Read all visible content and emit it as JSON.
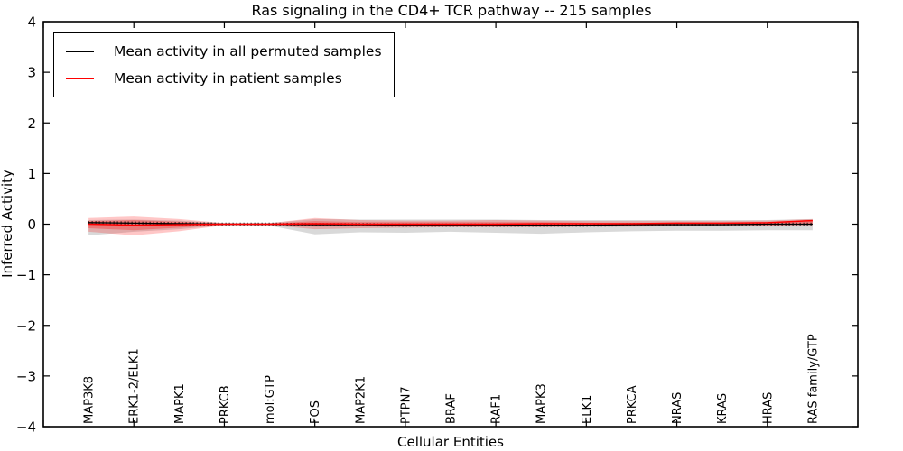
{
  "page": {
    "background": "#ffffff"
  },
  "chart_data": {
    "type": "line",
    "title": "Ras signaling in the CD4+ TCR pathway -- 215 samples",
    "xlabel": "Cellular Entities",
    "ylabel": "Inferred Activity",
    "ylim": [
      -4,
      4
    ],
    "yticks": [
      4,
      3,
      2,
      1,
      0,
      -1,
      -2,
      -3,
      -4
    ],
    "grid": false,
    "legend_position": "upper left",
    "categories": [
      "MAP3K8",
      "ERK1-2/ELK1",
      "MAPK1",
      "PRKCB",
      "mol:GTP",
      "FOS",
      "MAP2K1",
      "PTPN7",
      "BRAF",
      "RAF1",
      "MAPK3",
      "ELK1",
      "PRKCA",
      "NRAS",
      "KRAS",
      "HRAS",
      "RAS family/GTP"
    ],
    "series": [
      {
        "name": "Mean activity in all permuted samples",
        "color": "#000000",
        "style": "solid-with-vertical-tick-markers",
        "values": [
          0.03,
          0.02,
          0.01,
          0.0,
          0.0,
          -0.01,
          -0.01,
          -0.02,
          -0.02,
          -0.02,
          -0.02,
          -0.02,
          -0.01,
          -0.01,
          -0.01,
          0.0,
          0.0
        ]
      },
      {
        "name": "Mean activity in patient samples",
        "color": "#ff0000",
        "style": "solid",
        "values": [
          0.0,
          -0.02,
          -0.01,
          0.0,
          0.0,
          0.01,
          0.0,
          0.0,
          0.0,
          0.0,
          0.01,
          0.01,
          0.01,
          0.02,
          0.02,
          0.03,
          0.07
        ]
      }
    ],
    "bands": [
      {
        "name": "permuted samples spread",
        "color": "rgba(128,128,128,0.30)",
        "top": [
          0.08,
          0.09,
          0.07,
          0.02,
          0.02,
          0.1,
          0.09,
          0.09,
          0.09,
          0.09,
          0.08,
          0.08,
          0.08,
          0.08,
          0.08,
          0.08,
          0.1
        ],
        "bottom": [
          -0.22,
          -0.15,
          -0.1,
          -0.02,
          -0.03,
          -0.2,
          -0.16,
          -0.17,
          -0.15,
          -0.17,
          -0.19,
          -0.16,
          -0.14,
          -0.13,
          -0.13,
          -0.12,
          -0.12
        ]
      },
      {
        "name": "patient samples spread (outer)",
        "color": "rgba(255,0,0,0.22)",
        "top": [
          0.12,
          0.15,
          0.1,
          0.02,
          0.02,
          0.12,
          0.08,
          0.07,
          0.07,
          0.08,
          0.07,
          0.06,
          0.06,
          0.06,
          0.06,
          0.07,
          0.1
        ],
        "bottom": [
          -0.15,
          -0.22,
          -0.14,
          -0.02,
          -0.02,
          -0.1,
          -0.08,
          -0.07,
          -0.06,
          -0.06,
          -0.06,
          -0.05,
          -0.05,
          -0.04,
          -0.04,
          -0.03,
          -0.02
        ]
      },
      {
        "name": "patient samples spread (inner)",
        "color": "rgba(255,0,0,0.28)",
        "top": [
          0.06,
          0.08,
          0.05,
          0.01,
          0.01,
          0.06,
          0.04,
          0.04,
          0.04,
          0.04,
          0.04,
          0.03,
          0.03,
          0.03,
          0.03,
          0.04,
          0.06
        ],
        "bottom": [
          -0.08,
          -0.12,
          -0.07,
          -0.01,
          -0.01,
          -0.05,
          -0.04,
          -0.04,
          -0.03,
          -0.03,
          -0.03,
          -0.03,
          -0.03,
          -0.02,
          -0.02,
          -0.02,
          -0.01
        ]
      }
    ]
  }
}
